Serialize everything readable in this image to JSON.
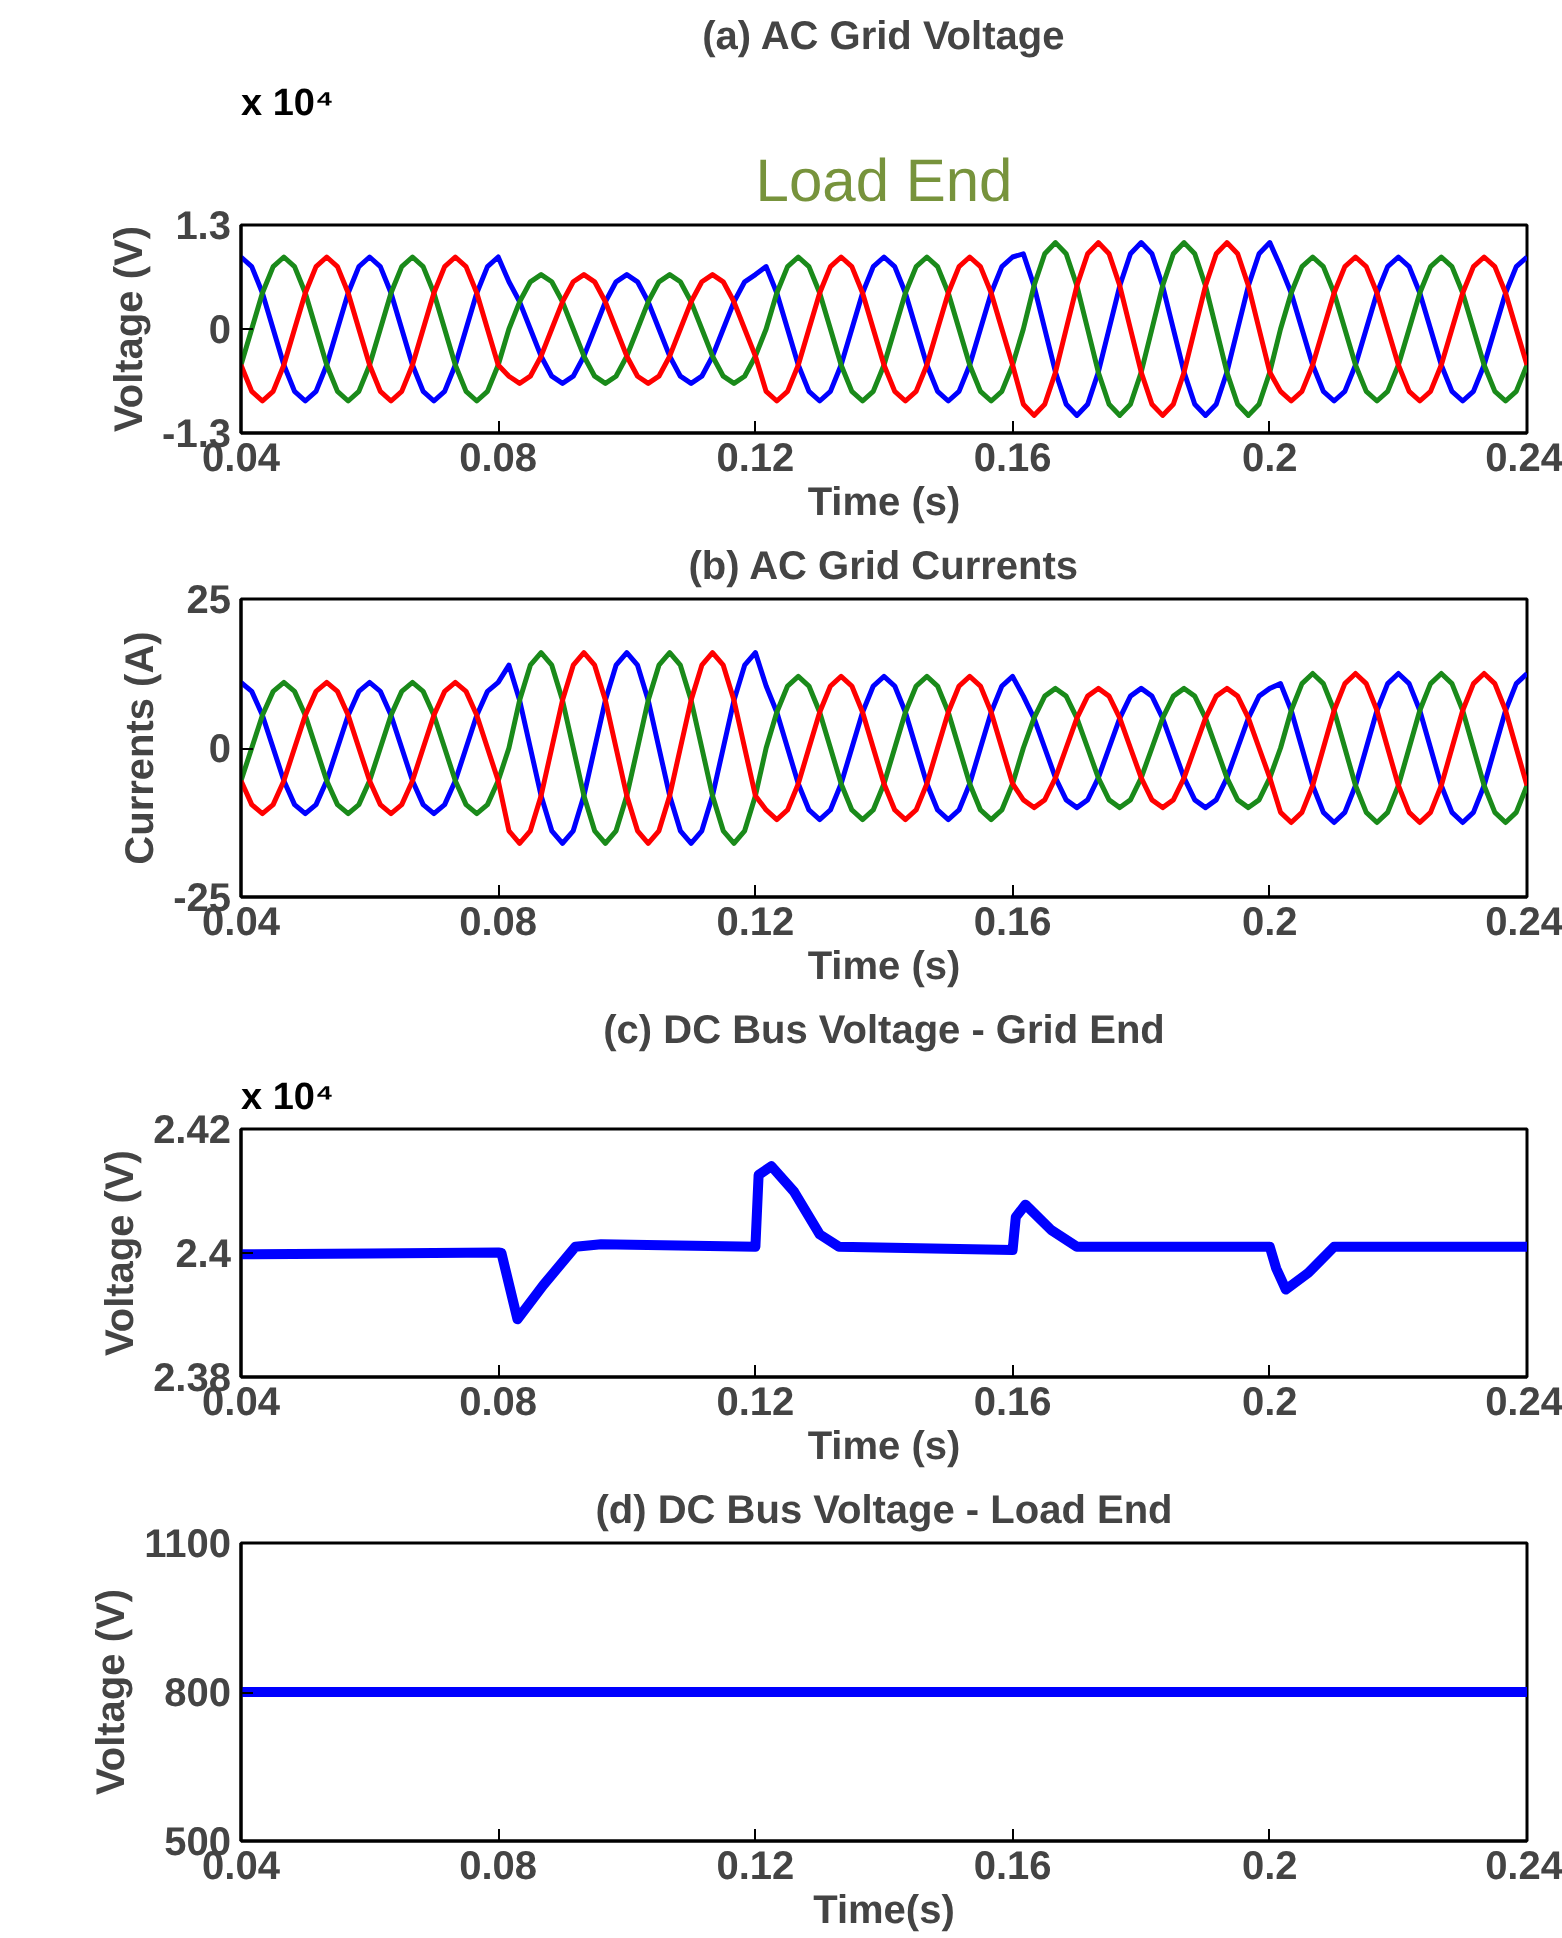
{
  "chart_data": [
    {
      "type": "line",
      "title": "(a) AC Grid Voltage",
      "xlabel": "Time (s)",
      "ylabel": "Voltage (V)",
      "annotations": [
        "x 10⁴",
        "Load End"
      ],
      "x": [
        0.04,
        0.04167,
        0.04333,
        0.045,
        0.04667,
        0.04833,
        0.05,
        0.05167,
        0.05333,
        0.055,
        0.05667,
        0.05833,
        0.06,
        0.06167,
        0.06333,
        0.065,
        0.06667,
        0.06833,
        0.07,
        0.07167,
        0.07333,
        0.075,
        0.07667,
        0.07833,
        0.08,
        0.08167,
        0.08333,
        0.085,
        0.08667,
        0.08833,
        0.09,
        0.09167,
        0.09333,
        0.095,
        0.09667,
        0.09833,
        0.1,
        0.10167,
        0.10333,
        0.105,
        0.10667,
        0.10833,
        0.11,
        0.11167,
        0.11333,
        0.115,
        0.11667,
        0.11833,
        0.12,
        0.12167,
        0.12333,
        0.125,
        0.12667,
        0.12833,
        0.13,
        0.13167,
        0.13333,
        0.135,
        0.13667,
        0.13833,
        0.14,
        0.14167,
        0.14333,
        0.145,
        0.14667,
        0.14833,
        0.15,
        0.15167,
        0.15333,
        0.155,
        0.15667,
        0.15833,
        0.16,
        0.16167,
        0.16333,
        0.165,
        0.16667,
        0.16833,
        0.17,
        0.17167,
        0.17333,
        0.175,
        0.17667,
        0.17833,
        0.18,
        0.18167,
        0.18333,
        0.185,
        0.18667,
        0.18833,
        0.19,
        0.19167,
        0.19333,
        0.195,
        0.19667,
        0.19833,
        0.2,
        0.20167,
        0.20333,
        0.205,
        0.20667,
        0.20833,
        0.21,
        0.21167,
        0.21333,
        0.215,
        0.21667,
        0.21833,
        0.22,
        0.22167,
        0.22333,
        0.225,
        0.22667,
        0.22833,
        0.23,
        0.23167,
        0.23333,
        0.235,
        0.23667,
        0.23833,
        0.24
      ],
      "series": [
        {
          "color": "#0000ff",
          "values": [
            0.9,
            0.78,
            0.45,
            0,
            -0.45,
            -0.78,
            -0.9,
            -0.78,
            -0.45,
            0,
            0.45,
            0.78,
            0.9,
            0.78,
            0.45,
            0,
            -0.45,
            -0.78,
            -0.9,
            -0.78,
            -0.45,
            0,
            0.45,
            0.78,
            0.9,
            0.59,
            0.34,
            0,
            -0.34,
            -0.59,
            -0.68,
            -0.59,
            -0.34,
            0,
            0.34,
            0.59,
            0.68,
            0.59,
            0.34,
            0,
            -0.34,
            -0.59,
            -0.68,
            -0.59,
            -0.34,
            0,
            0.34,
            0.59,
            0.68,
            0.78,
            0.45,
            0,
            -0.45,
            -0.78,
            -0.9,
            -0.78,
            -0.45,
            0,
            0.45,
            0.78,
            0.9,
            0.78,
            0.45,
            0,
            -0.45,
            -0.78,
            -0.9,
            -0.78,
            -0.45,
            0,
            0.45,
            0.78,
            0.9,
            0.94,
            0.54,
            0,
            -0.54,
            -0.94,
            -1.08,
            -0.94,
            -0.54,
            0,
            0.54,
            0.94,
            1.08,
            0.94,
            0.54,
            0,
            -0.54,
            -0.94,
            -1.08,
            -0.94,
            -0.54,
            0,
            0.54,
            0.94,
            1.08,
            0.78,
            0.45,
            0,
            -0.45,
            -0.78,
            -0.9,
            -0.78,
            -0.45,
            0,
            0.45,
            0.78,
            0.9,
            0.78,
            0.45,
            0,
            -0.45,
            -0.78,
            -0.9,
            -0.78,
            -0.45,
            0,
            0.45,
            0.78,
            0.9
          ]
        },
        {
          "color": "#1a8a1a",
          "values": [
            -0.45,
            0,
            0.45,
            0.78,
            0.9,
            0.78,
            0.45,
            0,
            -0.45,
            -0.78,
            -0.9,
            -0.78,
            -0.45,
            0,
            0.45,
            0.78,
            0.9,
            0.78,
            0.45,
            0,
            -0.45,
            -0.78,
            -0.9,
            -0.78,
            -0.45,
            0,
            0.34,
            0.59,
            0.68,
            0.59,
            0.34,
            0,
            -0.34,
            -0.59,
            -0.68,
            -0.59,
            -0.34,
            0,
            0.34,
            0.59,
            0.68,
            0.59,
            0.34,
            0,
            -0.34,
            -0.59,
            -0.68,
            -0.59,
            -0.34,
            0,
            0.45,
            0.78,
            0.9,
            0.78,
            0.45,
            0,
            -0.45,
            -0.78,
            -0.9,
            -0.78,
            -0.45,
            0,
            0.45,
            0.78,
            0.9,
            0.78,
            0.45,
            0,
            -0.45,
            -0.78,
            -0.9,
            -0.78,
            -0.45,
            0,
            0.54,
            0.94,
            1.08,
            0.94,
            0.54,
            0,
            -0.54,
            -0.94,
            -1.08,
            -0.94,
            -0.54,
            0,
            0.54,
            0.94,
            1.08,
            0.94,
            0.54,
            0,
            -0.54,
            -0.94,
            -1.08,
            -0.94,
            -0.54,
            0,
            0.45,
            0.78,
            0.9,
            0.78,
            0.45,
            0,
            -0.45,
            -0.78,
            -0.9,
            -0.78,
            -0.45,
            0,
            0.45,
            0.78,
            0.9,
            0.78,
            0.45,
            0,
            -0.45,
            -0.78,
            -0.9,
            -0.78,
            -0.45
          ]
        },
        {
          "color": "#ff0000",
          "values": [
            -0.45,
            -0.78,
            -0.9,
            -0.78,
            -0.45,
            0,
            0.45,
            0.78,
            0.9,
            0.78,
            0.45,
            0,
            -0.45,
            -0.78,
            -0.9,
            -0.78,
            -0.45,
            0,
            0.45,
            0.78,
            0.9,
            0.78,
            0.45,
            0,
            -0.45,
            -0.59,
            -0.68,
            -0.59,
            -0.34,
            0,
            0.34,
            0.59,
            0.68,
            0.59,
            0.34,
            0,
            -0.34,
            -0.59,
            -0.68,
            -0.59,
            -0.34,
            0,
            0.34,
            0.59,
            0.68,
            0.59,
            0.34,
            0,
            -0.34,
            -0.78,
            -0.9,
            -0.78,
            -0.45,
            0,
            0.45,
            0.78,
            0.9,
            0.78,
            0.45,
            0,
            -0.45,
            -0.78,
            -0.9,
            -0.78,
            -0.45,
            0,
            0.45,
            0.78,
            0.9,
            0.78,
            0.45,
            0,
            -0.45,
            -0.94,
            -1.08,
            -0.94,
            -0.54,
            0,
            0.54,
            0.94,
            1.08,
            0.94,
            0.54,
            0,
            -0.54,
            -0.94,
            -1.08,
            -0.94,
            -0.54,
            0,
            0.54,
            0.94,
            1.08,
            0.94,
            0.54,
            0,
            -0.54,
            -0.78,
            -0.9,
            -0.78,
            -0.45,
            0,
            0.45,
            0.78,
            0.9,
            0.78,
            0.45,
            0,
            -0.45,
            -0.78,
            -0.9,
            -0.78,
            -0.45,
            0,
            0.45,
            0.78,
            0.9,
            0.78,
            0.45,
            0,
            -0.45
          ]
        }
      ],
      "xlim": [
        0.04,
        0.24
      ],
      "ylim": [
        -1.3,
        1.3
      ],
      "xticks": [
        0.04,
        0.08,
        0.12,
        0.16,
        0.2,
        0.24
      ],
      "yticks": [
        -1.3,
        0,
        1.3
      ],
      "grid": false
    },
    {
      "type": "line",
      "title": "(b) AC Grid Currents",
      "xlabel": "Time (s)",
      "ylabel": "Currents (A)",
      "x": [
        0.04,
        0.04167,
        0.04333,
        0.045,
        0.04667,
        0.04833,
        0.05,
        0.05167,
        0.05333,
        0.055,
        0.05667,
        0.05833,
        0.06,
        0.06167,
        0.06333,
        0.065,
        0.06667,
        0.06833,
        0.07,
        0.07167,
        0.07333,
        0.075,
        0.07667,
        0.07833,
        0.08,
        0.08167,
        0.08333,
        0.085,
        0.08667,
        0.08833,
        0.09,
        0.09167,
        0.09333,
        0.095,
        0.09667,
        0.09833,
        0.1,
        0.10167,
        0.10333,
        0.105,
        0.10667,
        0.10833,
        0.11,
        0.11167,
        0.11333,
        0.115,
        0.11667,
        0.11833,
        0.12,
        0.12167,
        0.12333,
        0.125,
        0.12667,
        0.12833,
        0.13,
        0.13167,
        0.13333,
        0.135,
        0.13667,
        0.13833,
        0.14,
        0.14167,
        0.14333,
        0.145,
        0.14667,
        0.14833,
        0.15,
        0.15167,
        0.15333,
        0.155,
        0.15667,
        0.15833,
        0.16,
        0.16167,
        0.16333,
        0.165,
        0.16667,
        0.16833,
        0.17,
        0.17167,
        0.17333,
        0.175,
        0.17667,
        0.17833,
        0.18,
        0.18167,
        0.18333,
        0.185,
        0.18667,
        0.18833,
        0.19,
        0.19167,
        0.19333,
        0.195,
        0.19667,
        0.19833,
        0.2,
        0.20167,
        0.20333,
        0.205,
        0.20667,
        0.20833,
        0.21,
        0.21167,
        0.21333,
        0.215,
        0.21667,
        0.21833,
        0.22,
        0.22167,
        0.22333,
        0.225,
        0.22667,
        0.22833,
        0.23,
        0.23167,
        0.23333,
        0.235,
        0.23667,
        0.23833,
        0.24
      ],
      "series": [
        {
          "color": "#0000ff",
          "values": [
            11,
            9.5,
            5.5,
            0,
            -5.5,
            -9.5,
            -11,
            -9.5,
            -5.5,
            0,
            5.5,
            9.5,
            11,
            9.5,
            5.5,
            0,
            -5.5,
            -9.5,
            -11,
            -9.5,
            -5.5,
            0,
            5.5,
            9.5,
            11,
            13.9,
            8,
            0,
            -8,
            -13.9,
            -16,
            -13.9,
            -8,
            0,
            8,
            13.9,
            16,
            13.9,
            8,
            0,
            -8,
            -13.9,
            -16,
            -13.9,
            -8,
            0,
            8,
            13.9,
            16,
            10.4,
            6,
            0,
            -6,
            -10.4,
            -12,
            -10.4,
            -6,
            0,
            6,
            10.4,
            12,
            10.4,
            6,
            0,
            -6,
            -10.4,
            -12,
            -10.4,
            -6,
            0,
            6,
            10.4,
            12,
            8.7,
            5,
            0,
            -5,
            -8.7,
            -10,
            -8.7,
            -5,
            0,
            5,
            8.7,
            10,
            8.7,
            5,
            0,
            -5,
            -8.7,
            -10,
            -8.7,
            -5,
            0,
            5,
            8.7,
            10,
            10.8,
            6.3,
            0,
            -6.3,
            -10.8,
            -12.5,
            -10.8,
            -6.3,
            0,
            6.3,
            10.8,
            12.5,
            10.8,
            6.3,
            0,
            -6.3,
            -10.8,
            -12.5,
            -10.8,
            -6.3,
            0,
            6.3,
            10.8,
            12.5
          ]
        },
        {
          "color": "#1a8a1a",
          "values": [
            -5.5,
            0,
            5.5,
            9.5,
            11,
            9.5,
            5.5,
            0,
            -5.5,
            -9.5,
            -11,
            -9.5,
            -5.5,
            0,
            5.5,
            9.5,
            11,
            9.5,
            5.5,
            0,
            -5.5,
            -9.5,
            -11,
            -9.5,
            -5.5,
            0,
            8,
            13.9,
            16,
            13.9,
            8,
            0,
            -8,
            -13.9,
            -16,
            -13.9,
            -8,
            0,
            8,
            13.9,
            16,
            13.9,
            8,
            0,
            -8,
            -13.9,
            -16,
            -13.9,
            -8,
            0,
            6,
            10.4,
            12,
            10.4,
            6,
            0,
            -6,
            -10.4,
            -12,
            -10.4,
            -6,
            0,
            6,
            10.4,
            12,
            10.4,
            6,
            0,
            -6,
            -10.4,
            -12,
            -10.4,
            -6,
            0,
            5,
            8.7,
            10,
            8.7,
            5,
            0,
            -5,
            -8.7,
            -10,
            -8.7,
            -5,
            0,
            5,
            8.7,
            10,
            8.7,
            5,
            0,
            -5,
            -8.7,
            -10,
            -8.7,
            -5,
            0,
            6.3,
            10.8,
            12.5,
            10.8,
            6.3,
            0,
            -6.3,
            -10.8,
            -12.5,
            -10.8,
            -6.3,
            0,
            6.3,
            10.8,
            12.5,
            10.8,
            6.3,
            0,
            -6.3,
            -10.8,
            -12.5,
            -10.8,
            -6.3
          ]
        },
        {
          "color": "#ff0000",
          "values": [
            -5.5,
            -9.5,
            -11,
            -9.5,
            -5.5,
            0,
            5.5,
            9.5,
            11,
            9.5,
            5.5,
            0,
            -5.5,
            -9.5,
            -11,
            -9.5,
            -5.5,
            0,
            5.5,
            9.5,
            11,
            9.5,
            5.5,
            0,
            -5.5,
            -13.9,
            -16,
            -13.9,
            -8,
            0,
            8,
            13.9,
            16,
            13.9,
            8,
            0,
            -8,
            -13.9,
            -16,
            -13.9,
            -8,
            0,
            8,
            13.9,
            16,
            13.9,
            8,
            0,
            -8,
            -10.4,
            -12,
            -10.4,
            -6,
            0,
            6,
            10.4,
            12,
            10.4,
            6,
            0,
            -6,
            -10.4,
            -12,
            -10.4,
            -6,
            0,
            6,
            10.4,
            12,
            10.4,
            6,
            0,
            -6,
            -8.7,
            -10,
            -8.7,
            -5,
            0,
            5,
            8.7,
            10,
            8.7,
            5,
            0,
            -5,
            -8.7,
            -10,
            -8.7,
            -5,
            0,
            5,
            8.7,
            10,
            8.7,
            5,
            0,
            -5,
            -10.8,
            -12.5,
            -10.8,
            -6.3,
            0,
            6.3,
            10.8,
            12.5,
            10.8,
            6.3,
            0,
            -6.3,
            -10.8,
            -12.5,
            -10.8,
            -6.3,
            0,
            6.3,
            10.8,
            12.5,
            10.8,
            6.3,
            0,
            -6.3
          ]
        }
      ],
      "xlim": [
        0.04,
        0.24
      ],
      "ylim": [
        -25,
        25
      ],
      "xticks": [
        0.04,
        0.08,
        0.12,
        0.16,
        0.2,
        0.24
      ],
      "yticks": [
        -25,
        0,
        25
      ],
      "grid": false
    },
    {
      "type": "line",
      "title": "(c) DC Bus Voltage - Grid End",
      "xlabel": "Time (s)",
      "ylabel": "Voltage (V)",
      "annotations": [
        "x 10⁴"
      ],
      "x": [
        0.04,
        0.06,
        0.08,
        0.0805,
        0.083,
        0.087,
        0.092,
        0.096,
        0.12,
        0.1205,
        0.1225,
        0.126,
        0.13,
        0.133,
        0.16,
        0.1605,
        0.162,
        0.166,
        0.17,
        0.2,
        0.201,
        0.2025,
        0.206,
        0.21,
        0.24
      ],
      "series": [
        {
          "color": "#0000ff",
          "values": [
            2.3998,
            2.3999,
            2.4001,
            2.4,
            2.3893,
            2.3948,
            2.401,
            2.4014,
            2.401,
            2.4126,
            2.414,
            2.4099,
            2.403,
            2.401,
            2.4005,
            2.4058,
            2.4078,
            2.4037,
            2.401,
            2.401,
            2.3975,
            2.3941,
            2.3968,
            2.401,
            2.401
          ]
        }
      ],
      "xlim": [
        0.04,
        0.24
      ],
      "ylim": [
        2.38,
        2.42
      ],
      "xticks": [
        0.04,
        0.08,
        0.12,
        0.16,
        0.2,
        0.24
      ],
      "yticks": [
        2.38,
        2.4,
        2.42
      ],
      "grid": false
    },
    {
      "type": "line",
      "title": "(d) DC Bus Voltage - Load End",
      "xlabel": "Time(s)",
      "ylabel": "Voltage (V)",
      "x": [
        0.04,
        0.24
      ],
      "series": [
        {
          "color": "#0000ff",
          "values": [
            800,
            800
          ]
        }
      ],
      "xlim": [
        0.04,
        0.24
      ],
      "ylim": [
        500,
        1100
      ],
      "xticks": [
        0.04,
        0.08,
        0.12,
        0.16,
        0.2,
        0.24
      ],
      "yticks": [
        500,
        800,
        1100
      ],
      "grid": false
    }
  ]
}
